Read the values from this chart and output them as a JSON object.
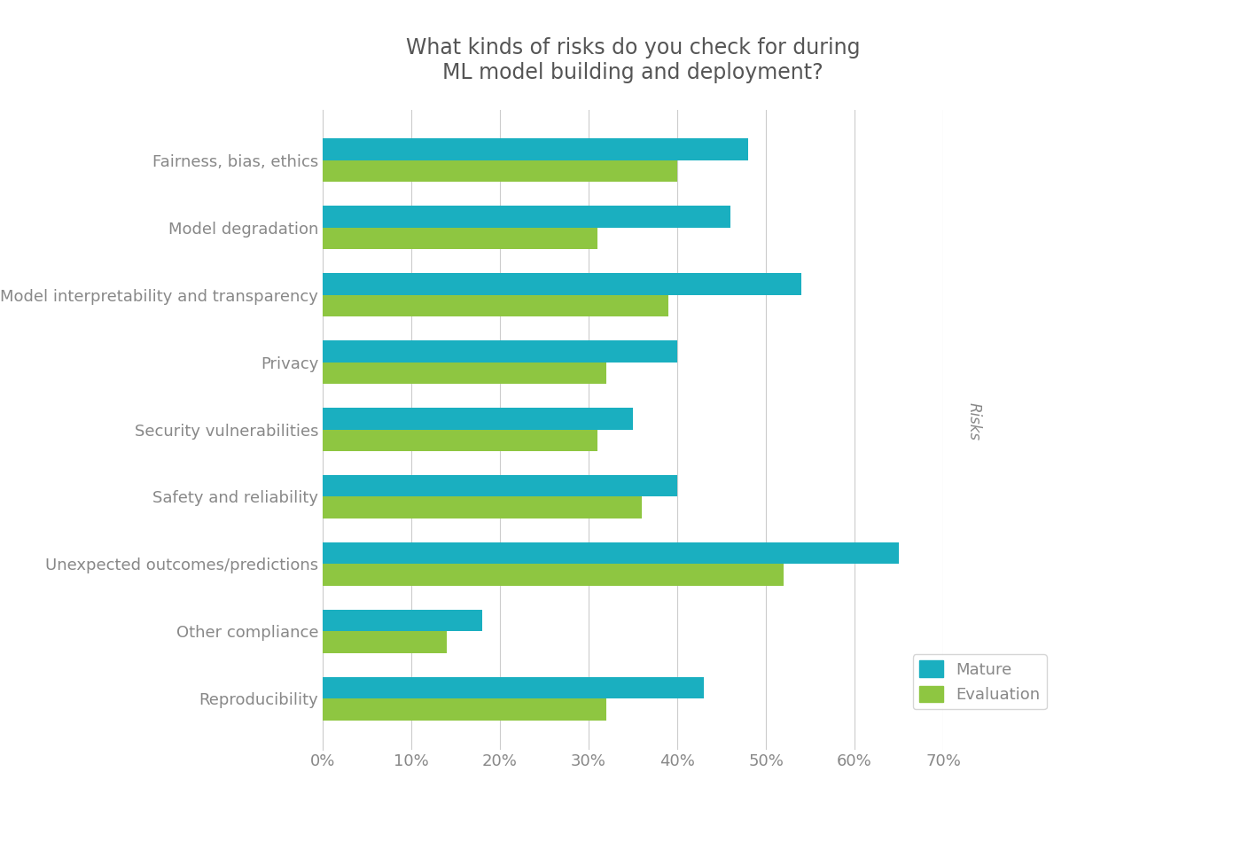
{
  "title": "What kinds of risks do you check for during\nML model building and deployment?",
  "categories": [
    "Fairness, bias, ethics",
    "Model degradation",
    "Model interpretability and transparency",
    "Privacy",
    "Security vulnerabilities",
    "Safety and reliability",
    "Unexpected outcomes/predictions",
    "Other compliance",
    "Reproducibility"
  ],
  "mature": [
    48,
    46,
    54,
    40,
    35,
    40,
    65,
    18,
    43
  ],
  "evaluation": [
    40,
    31,
    39,
    32,
    31,
    36,
    52,
    14,
    32
  ],
  "mature_color": "#1aafc0",
  "evaluation_color": "#8ec641",
  "background_color": "#ffffff",
  "grid_color": "#cccccc",
  "text_color": "#888888",
  "title_color": "#555555",
  "xlabel_max": 70,
  "xtick_values": [
    0,
    10,
    20,
    30,
    40,
    50,
    60,
    70
  ],
  "bar_height": 0.32,
  "ylabel_text": "Risks",
  "legend_labels": [
    "Mature",
    "Evaluation"
  ],
  "title_fontsize": 17,
  "axis_fontsize": 13,
  "tick_fontsize": 13,
  "ylabel_fontsize": 12
}
